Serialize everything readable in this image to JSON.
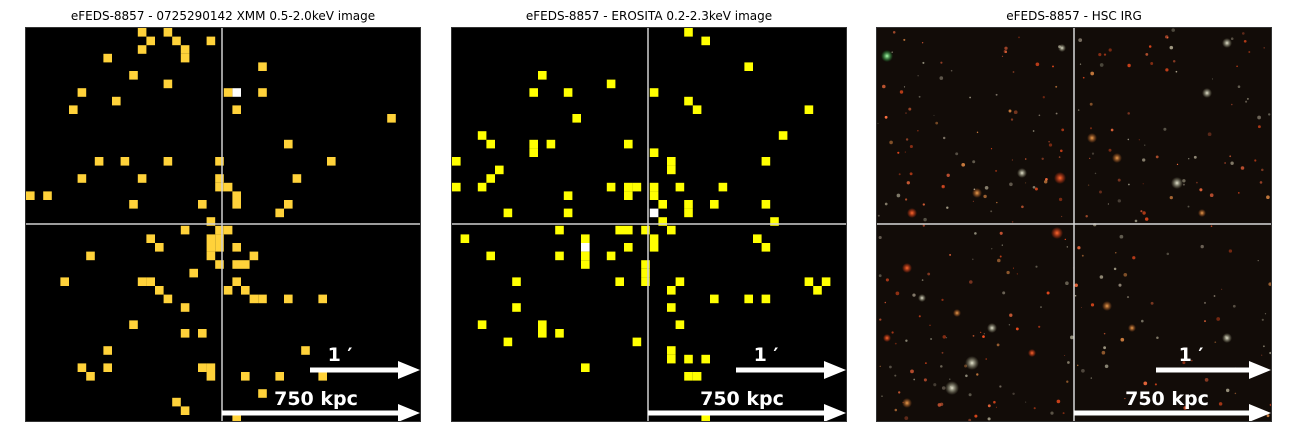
{
  "panels": [
    {
      "id": "xmm",
      "title": "eFEDS-8857 - 0725290142 XMM 0.5-2.0keV image",
      "kind": "pixel-map",
      "pixel_color": "#ffd23a",
      "hot_color": "#ffffff",
      "scale_arcmin_label": "1 ′",
      "scale_kpc_label": "750 kpc"
    },
    {
      "id": "erosita",
      "title": "eFEDS-8857 -  EROSITA 0.2-2.3keV image",
      "kind": "pixel-map",
      "pixel_color": "#ffff00",
      "hot_color": "#ffffff",
      "scale_arcmin_label": "1 ′",
      "scale_kpc_label": "750 kpc"
    },
    {
      "id": "hsc",
      "title": "eFEDS-8857 - HSC IRG",
      "kind": "optical",
      "scale_arcmin_label": "1 ′",
      "scale_kpc_label": "750 kpc"
    }
  ]
}
